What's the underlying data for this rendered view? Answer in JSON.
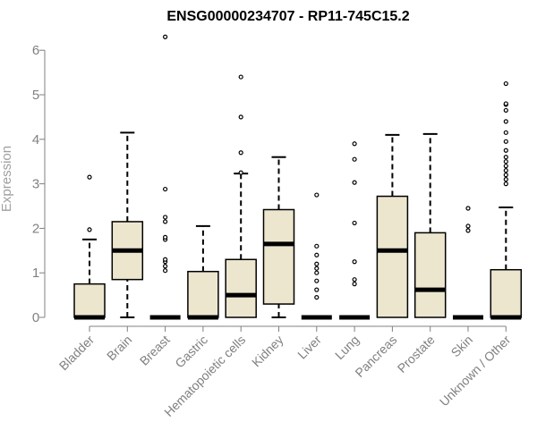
{
  "chart_data": {
    "type": "box",
    "title": "ENSG00000234707 - RP11-745C15.2",
    "xlabel": "",
    "ylabel": "Expression",
    "ylim": [
      0,
      6.2
    ],
    "yticks": [
      0,
      1,
      2,
      3,
      4,
      5,
      6
    ],
    "box_fill": "#ede6cf",
    "grid": false,
    "categories": [
      "Bladder",
      "Brain",
      "Breast",
      "Gastric",
      "Hematopoietic cells",
      "Kidney",
      "Liver",
      "Lung",
      "Pancreas",
      "Prostate",
      "Skin",
      "Unknown / Other"
    ],
    "boxes": [
      {
        "q1": 0,
        "median": 0,
        "q3": 0.75,
        "whisker_low": 0,
        "whisker_high": 1.75,
        "outliers": [
          1.97,
          3.15
        ]
      },
      {
        "q1": 0.85,
        "median": 1.5,
        "q3": 2.15,
        "whisker_low": 0,
        "whisker_high": 4.15,
        "outliers": []
      },
      {
        "q1": 0,
        "median": 0,
        "q3": 0,
        "whisker_low": 0,
        "whisker_high": 0,
        "outliers": [
          1.05,
          1.15,
          1.25,
          1.3,
          1.75,
          1.8,
          2.15,
          2.25,
          2.88,
          6.3
        ]
      },
      {
        "q1": 0,
        "median": 0,
        "q3": 1.03,
        "whisker_low": 0,
        "whisker_high": 2.05,
        "outliers": []
      },
      {
        "q1": 0,
        "median": 0.5,
        "q3": 1.3,
        "whisker_low": 0,
        "whisker_high": 3.23,
        "outliers": [
          3.25,
          3.7,
          4.5,
          5.4
        ]
      },
      {
        "q1": 0.3,
        "median": 1.65,
        "q3": 2.42,
        "whisker_low": 0,
        "whisker_high": 3.6,
        "outliers": []
      },
      {
        "q1": 0,
        "median": 0,
        "q3": 0,
        "whisker_low": 0,
        "whisker_high": 0,
        "outliers": [
          0.45,
          0.62,
          0.82,
          1.0,
          1.1,
          1.2,
          1.4,
          1.6,
          2.75
        ]
      },
      {
        "q1": 0,
        "median": 0,
        "q3": 0,
        "whisker_low": 0,
        "whisker_high": 0,
        "outliers": [
          0.75,
          0.85,
          1.25,
          2.12,
          3.03,
          3.55,
          3.9
        ]
      },
      {
        "q1": 0,
        "median": 1.5,
        "q3": 2.72,
        "whisker_low": 0,
        "whisker_high": 4.1,
        "outliers": []
      },
      {
        "q1": 0,
        "median": 0.62,
        "q3": 1.9,
        "whisker_low": 0,
        "whisker_high": 4.12,
        "outliers": []
      },
      {
        "q1": 0,
        "median": 0,
        "q3": 0,
        "whisker_low": 0,
        "whisker_high": 0,
        "outliers": [
          1.95,
          2.05,
          2.45
        ]
      },
      {
        "q1": 0,
        "median": 0,
        "q3": 1.07,
        "whisker_low": 0,
        "whisker_high": 2.47,
        "outliers": [
          3.0,
          3.1,
          3.2,
          3.3,
          3.4,
          3.5,
          3.6,
          3.75,
          3.95,
          4.15,
          4.4,
          4.65,
          4.78,
          4.8,
          5.25
        ]
      }
    ]
  }
}
